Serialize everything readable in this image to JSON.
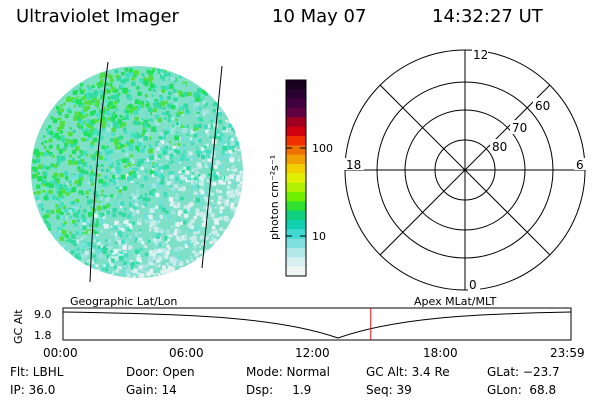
{
  "header": {
    "instrument": "Ultraviolet Imager",
    "date": "10 May 07",
    "time": "14:32:27 UT"
  },
  "colorbar": {
    "unit_label": "photon cm⁻²s⁻¹",
    "ticks": [
      "100",
      "10"
    ],
    "colors": [
      "#1a0020",
      "#2a0030",
      "#400040",
      "#600040",
      "#a00020",
      "#d00010",
      "#f03000",
      "#f07000",
      "#f0a000",
      "#f0d000",
      "#e0f000",
      "#b0f000",
      "#70f000",
      "#30e030",
      "#10d080",
      "#10d0b0",
      "#40d8d0",
      "#80e0e0",
      "#b0e8e8",
      "#d8f0f0",
      "#eef6f6"
    ]
  },
  "polar_plot": {
    "lat_labels": [
      "80",
      "70",
      "60"
    ],
    "mlt_labels": {
      "top": "12",
      "left": "18",
      "right": "6",
      "bottom": "0"
    }
  },
  "image_panel": {
    "dominant_colors": [
      "#20e060",
      "#40e0c0",
      "#b8e8e8",
      "#60e030"
    ]
  },
  "altitude_plot": {
    "ylabel": "GC Alt",
    "y_ticks": [
      "9.0",
      "1.8"
    ],
    "left_caption": "Geographic Lat/Lon",
    "right_caption": "Apex MLat/MLT",
    "x_ticks": [
      "00:00",
      "06:00",
      "12:00",
      "18:00",
      "23:59"
    ],
    "current_time_hours": 14.54,
    "marker_color": "#d01010"
  },
  "status": {
    "flt": "Flt: LBHL",
    "ip": "IP: 36.0",
    "door": "Door: Open",
    "gain": "Gain: 14",
    "mode": "Mode: Normal",
    "dsp": "Dsp:     1.9",
    "gc_alt": "GC Alt: 3.4 Re",
    "seq": "Seq: 39",
    "glat": "GLat: −23.7",
    "glon": "GLon:  68.8"
  }
}
